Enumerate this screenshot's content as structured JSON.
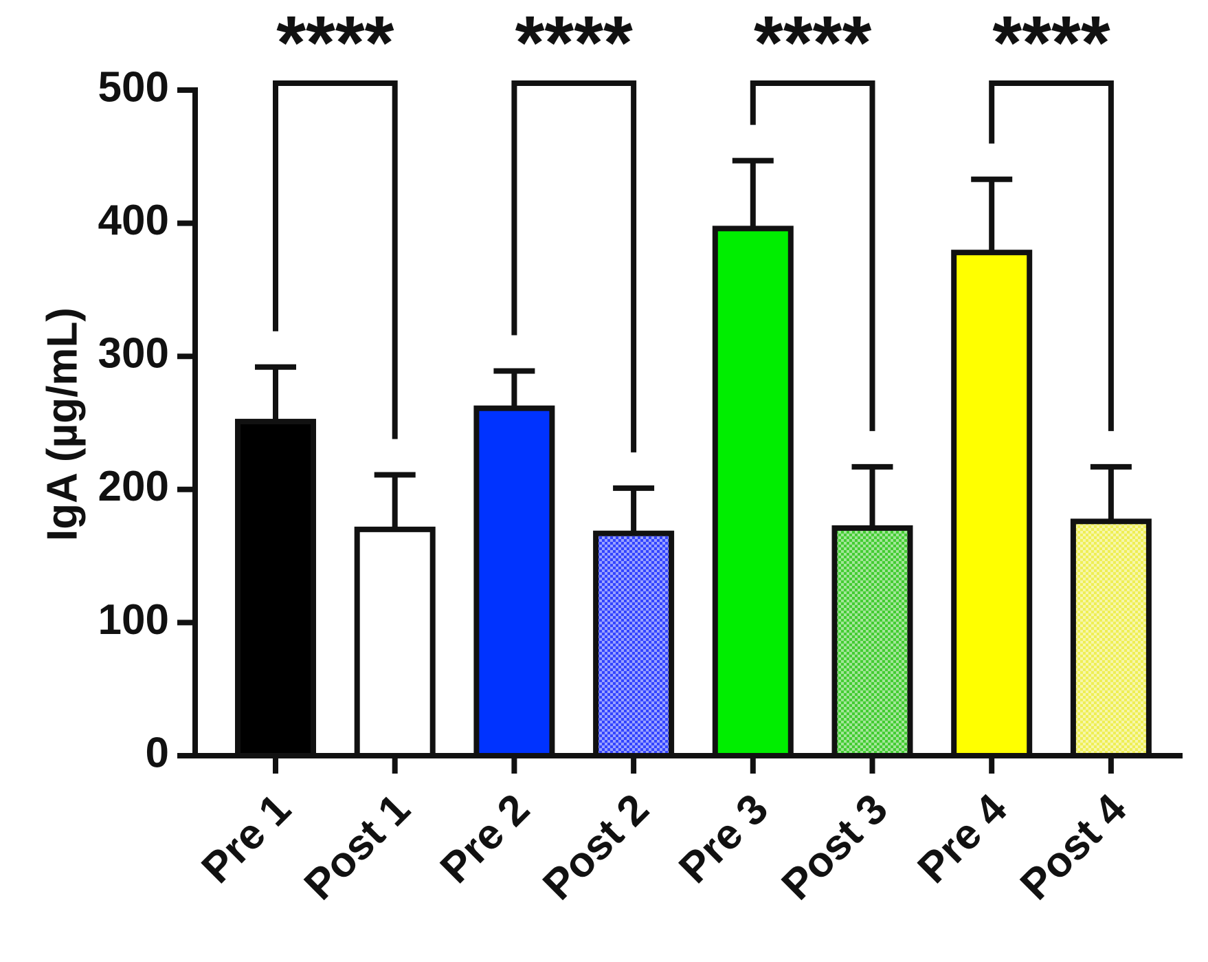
{
  "chart_data": {
    "type": "bar",
    "y_label": "IgA (µg/mL)",
    "categories": [
      "Pre 1",
      "Post 1",
      "Pre 2",
      "Post 2",
      "Pre 3",
      "Post 3",
      "Pre 4",
      "Post 4"
    ],
    "values": [
      251,
      170,
      261,
      167,
      396,
      171,
      378,
      176
    ],
    "errors": [
      41,
      41,
      28,
      34,
      51,
      46,
      55,
      41
    ],
    "colors": [
      "#000000",
      "#ffffff",
      "#0033ff",
      "#3344ff",
      "#00ee00",
      "#44cc33",
      "#ffff00",
      "#eeee55"
    ],
    "patterned": [
      false,
      false,
      false,
      true,
      false,
      true,
      false,
      true
    ],
    "annotations": [
      "****",
      "****",
      "****",
      "****"
    ],
    "ylim": [
      0,
      500
    ],
    "yticks": [
      0,
      100,
      200,
      300,
      400,
      500
    ]
  }
}
